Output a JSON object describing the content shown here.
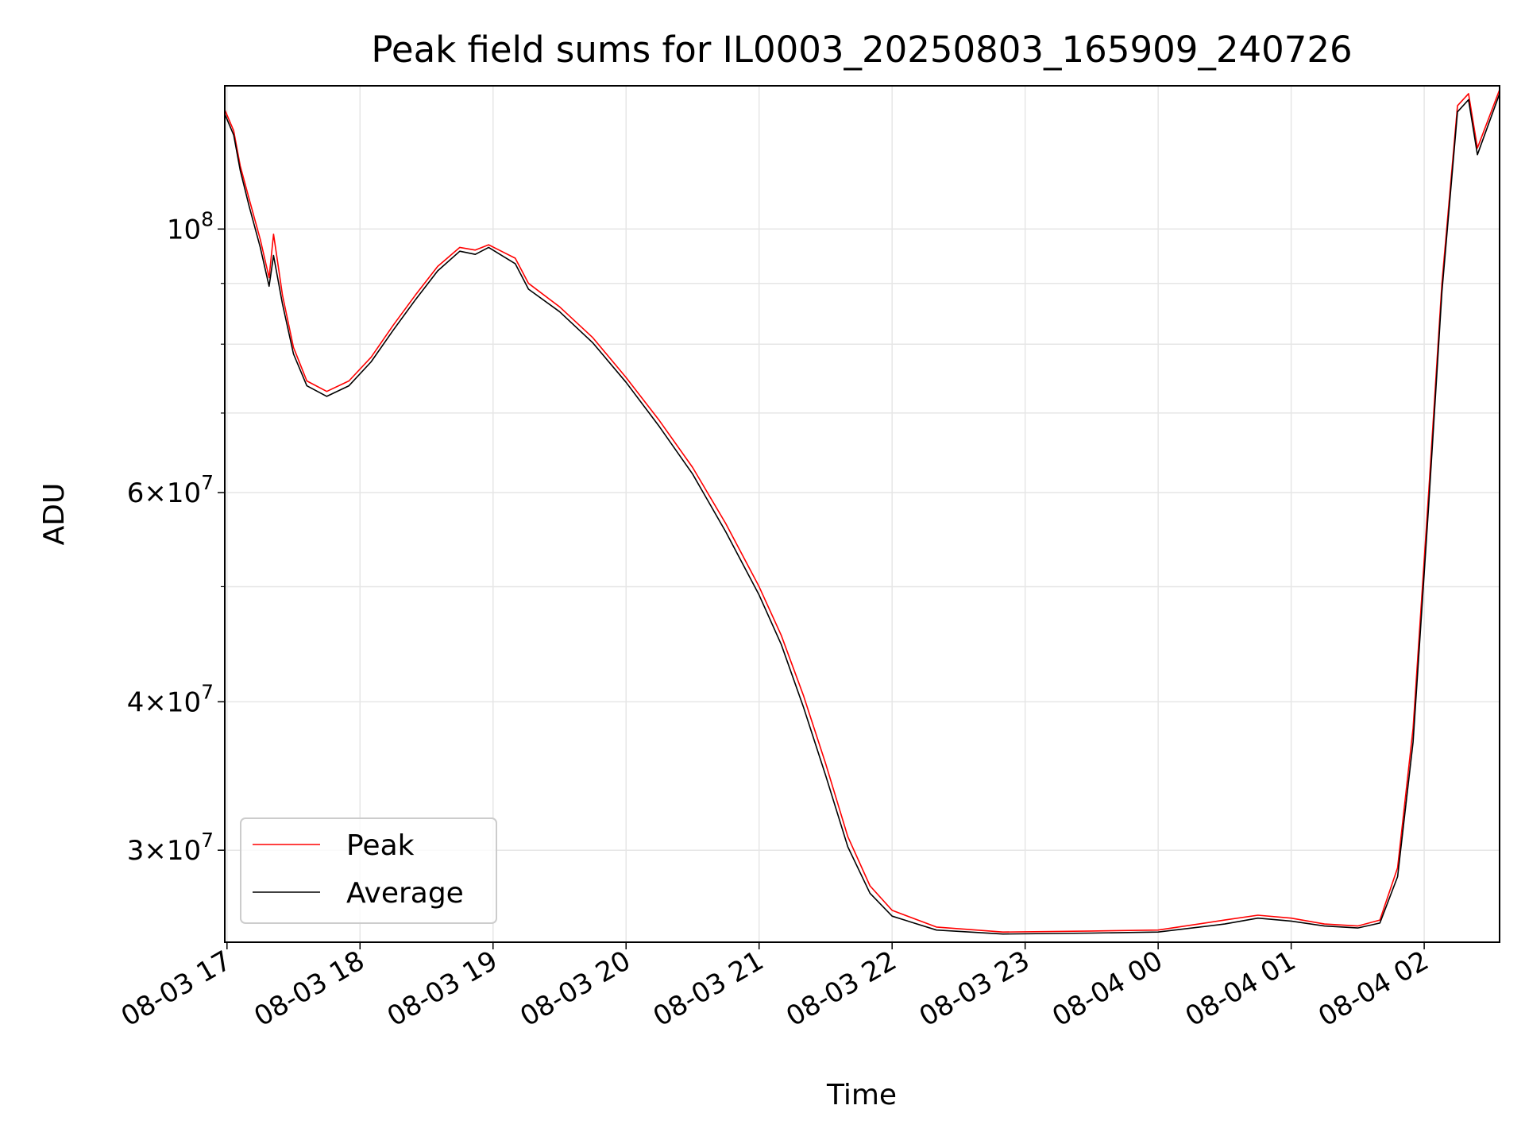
{
  "chart_data": {
    "type": "line",
    "title": "Peak field sums for IL0003_20250803_165909_240726",
    "xlabel": "Time",
    "ylabel": "ADU",
    "yscale": "log",
    "grid": true,
    "legend_position": "lower-left",
    "x_ticks": [
      "08-03 17",
      "08-03 18",
      "08-03 19",
      "08-03 20",
      "08-03 21",
      "08-03 22",
      "08-03 23",
      "08-04 00",
      "08-04 01",
      "08-04 02"
    ],
    "y_ticks": [
      {
        "value": 30000000,
        "mantissa": "3",
        "exp": "7"
      },
      {
        "value": 40000000,
        "mantissa": "4",
        "exp": "7"
      },
      {
        "value": 60000000,
        "mantissa": "6",
        "exp": "7"
      },
      {
        "value": 100000000,
        "mantissa": "",
        "exp": "8"
      }
    ],
    "xlim": [
      "2025-08-03 16:59",
      "2025-08-04 02:34"
    ],
    "ylim": [
      25100000,
      132000000
    ],
    "series": [
      {
        "name": "Peak",
        "color": "#ff0000",
        "points": [
          [
            "2025-08-03 16:59",
            126000000
          ],
          [
            "2025-08-03 17:03",
            121000000
          ],
          [
            "2025-08-03 17:06",
            113000000
          ],
          [
            "2025-08-03 17:10",
            106000000
          ],
          [
            "2025-08-03 17:15",
            98000000
          ],
          [
            "2025-08-03 17:19",
            91000000
          ],
          [
            "2025-08-03 17:21",
            99000000
          ],
          [
            "2025-08-03 17:25",
            88000000
          ],
          [
            "2025-08-03 17:30",
            79500000
          ],
          [
            "2025-08-03 17:36",
            74500000
          ],
          [
            "2025-08-03 17:45",
            73000000
          ],
          [
            "2025-08-03 17:55",
            74500000
          ],
          [
            "2025-08-03 18:05",
            78000000
          ],
          [
            "2025-08-03 18:15",
            83000000
          ],
          [
            "2025-08-03 18:25",
            88000000
          ],
          [
            "2025-08-03 18:35",
            93000000
          ],
          [
            "2025-08-03 18:45",
            96500000
          ],
          [
            "2025-08-03 18:52",
            96000000
          ],
          [
            "2025-08-03 18:58",
            97000000
          ],
          [
            "2025-08-03 19:10",
            94500000
          ],
          [
            "2025-08-03 19:16",
            90000000
          ],
          [
            "2025-08-03 19:30",
            86000000
          ],
          [
            "2025-08-03 19:45",
            81000000
          ],
          [
            "2025-08-03 20:00",
            75000000
          ],
          [
            "2025-08-03 20:15",
            69000000
          ],
          [
            "2025-08-03 20:30",
            63000000
          ],
          [
            "2025-08-03 20:45",
            56500000
          ],
          [
            "2025-08-03 21:00",
            50000000
          ],
          [
            "2025-08-03 21:10",
            45500000
          ],
          [
            "2025-08-03 21:20",
            40500000
          ],
          [
            "2025-08-03 21:30",
            35500000
          ],
          [
            "2025-08-03 21:40",
            30800000
          ],
          [
            "2025-08-03 21:50",
            28000000
          ],
          [
            "2025-08-03 22:00",
            26700000
          ],
          [
            "2025-08-03 22:20",
            25850000
          ],
          [
            "2025-08-03 22:50",
            25600000
          ],
          [
            "2025-08-03 23:30",
            25650000
          ],
          [
            "2025-08-04 00:00",
            25700000
          ],
          [
            "2025-08-04 00:30",
            26200000
          ],
          [
            "2025-08-04 00:45",
            26450000
          ],
          [
            "2025-08-04 01:00",
            26300000
          ],
          [
            "2025-08-04 01:15",
            26000000
          ],
          [
            "2025-08-04 01:30",
            25900000
          ],
          [
            "2025-08-04 01:40",
            26200000
          ],
          [
            "2025-08-04 01:48",
            29000000
          ],
          [
            "2025-08-04 01:55",
            38000000
          ],
          [
            "2025-08-04 02:02",
            60000000
          ],
          [
            "2025-08-04 02:08",
            90000000
          ],
          [
            "2025-08-04 02:15",
            127000000
          ],
          [
            "2025-08-04 02:20",
            130000000
          ],
          [
            "2025-08-04 02:24",
            117000000
          ],
          [
            "2025-08-04 02:34",
            131000000
          ]
        ]
      },
      {
        "name": "Average",
        "color": "#000000",
        "points": [
          [
            "2025-08-03 16:59",
            125000000
          ],
          [
            "2025-08-03 17:03",
            120000000
          ],
          [
            "2025-08-03 17:06",
            112000000
          ],
          [
            "2025-08-03 17:10",
            104500000
          ],
          [
            "2025-08-03 17:15",
            96500000
          ],
          [
            "2025-08-03 17:19",
            89500000
          ],
          [
            "2025-08-03 17:21",
            95000000
          ],
          [
            "2025-08-03 17:25",
            86500000
          ],
          [
            "2025-08-03 17:30",
            78500000
          ],
          [
            "2025-08-03 17:36",
            73800000
          ],
          [
            "2025-08-03 17:45",
            72300000
          ],
          [
            "2025-08-03 17:55",
            73800000
          ],
          [
            "2025-08-03 18:05",
            77300000
          ],
          [
            "2025-08-03 18:15",
            82200000
          ],
          [
            "2025-08-03 18:25",
            87200000
          ],
          [
            "2025-08-03 18:35",
            92200000
          ],
          [
            "2025-08-03 18:45",
            95800000
          ],
          [
            "2025-08-03 18:52",
            95200000
          ],
          [
            "2025-08-03 18:58",
            96500000
          ],
          [
            "2025-08-03 19:10",
            93500000
          ],
          [
            "2025-08-03 19:16",
            89000000
          ],
          [
            "2025-08-03 19:30",
            85200000
          ],
          [
            "2025-08-03 19:45",
            80200000
          ],
          [
            "2025-08-03 20:00",
            74300000
          ],
          [
            "2025-08-03 20:15",
            68200000
          ],
          [
            "2025-08-03 20:30",
            62200000
          ],
          [
            "2025-08-03 20:45",
            55600000
          ],
          [
            "2025-08-03 21:00",
            49200000
          ],
          [
            "2025-08-03 21:10",
            44700000
          ],
          [
            "2025-08-03 21:20",
            39600000
          ],
          [
            "2025-08-03 21:30",
            34700000
          ],
          [
            "2025-08-03 21:40",
            30200000
          ],
          [
            "2025-08-03 21:50",
            27600000
          ],
          [
            "2025-08-03 22:00",
            26400000
          ],
          [
            "2025-08-03 22:20",
            25700000
          ],
          [
            "2025-08-03 22:50",
            25500000
          ],
          [
            "2025-08-03 23:30",
            25550000
          ],
          [
            "2025-08-04 00:00",
            25600000
          ],
          [
            "2025-08-04 00:30",
            26000000
          ],
          [
            "2025-08-04 00:45",
            26300000
          ],
          [
            "2025-08-04 01:00",
            26150000
          ],
          [
            "2025-08-04 01:15",
            25900000
          ],
          [
            "2025-08-04 01:30",
            25800000
          ],
          [
            "2025-08-04 01:40",
            26050000
          ],
          [
            "2025-08-04 01:48",
            28500000
          ],
          [
            "2025-08-04 01:55",
            37000000
          ],
          [
            "2025-08-04 02:02",
            58500000
          ],
          [
            "2025-08-04 02:08",
            88500000
          ],
          [
            "2025-08-04 02:15",
            125500000
          ],
          [
            "2025-08-04 02:20",
            128500000
          ],
          [
            "2025-08-04 02:24",
            115500000
          ],
          [
            "2025-08-04 02:34",
            130000000
          ]
        ]
      }
    ]
  }
}
